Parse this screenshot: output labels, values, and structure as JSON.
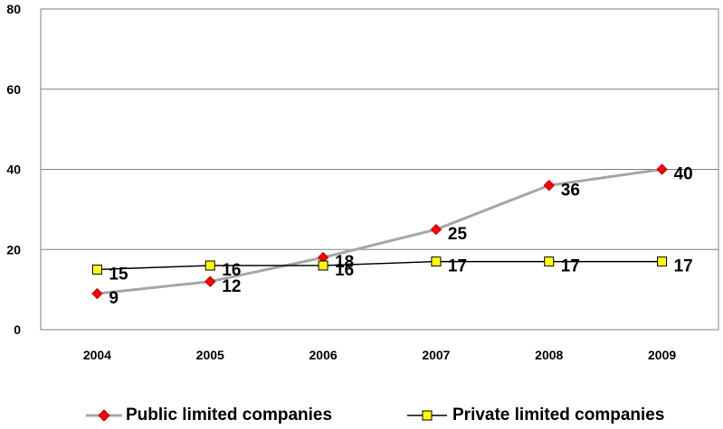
{
  "chart_data": {
    "type": "line",
    "title": "",
    "xlabel": "",
    "ylabel": "",
    "categories": [
      "2004",
      "2005",
      "2006",
      "2007",
      "2008",
      "2009"
    ],
    "ylim": [
      0,
      80
    ],
    "yticks": [
      "0",
      "20",
      "40",
      "60",
      "80"
    ],
    "grid": true,
    "legend_position": "bottom",
    "series": [
      {
        "name": "Public limited companies",
        "values": [
          9,
          12,
          18,
          25,
          36,
          40
        ],
        "labels": [
          "9",
          "12",
          "18",
          "25",
          "36",
          "40"
        ],
        "line_color": "#a6a6a6",
        "marker": "diamond",
        "marker_fill": "#ff0000"
      },
      {
        "name": "Private limited companies",
        "values": [
          15,
          16,
          16,
          17,
          17,
          17
        ],
        "labels": [
          "15",
          "16",
          "16",
          "17",
          "17",
          "17"
        ],
        "line_color": "#000000",
        "marker": "square",
        "marker_fill": "#ffff00"
      }
    ]
  }
}
